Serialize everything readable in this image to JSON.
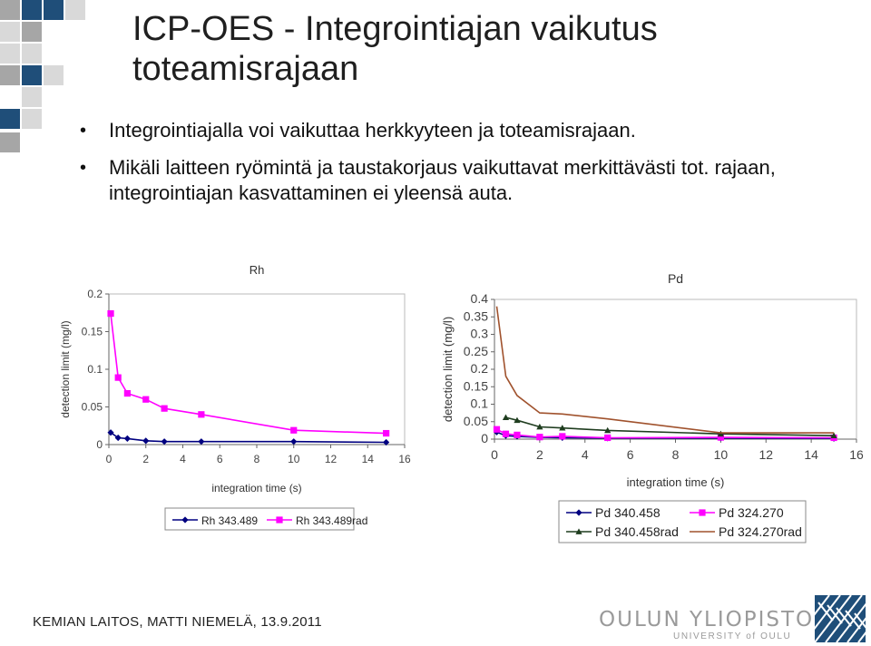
{
  "title": "ICP-OES - Integrointiajan vaikutus toteamisrajaan",
  "bullets": [
    "Integrointiajalla voi vaikuttaa herkkyyteen ja toteamisrajaan.",
    "Mikäli laitteen ryömintä ja taustakorjaus vaikuttavat merkittävästi tot. rajaan, integrointiajan kasvattaminen ei yleensä auta."
  ],
  "footer": "KEMIAN LAITOS, MATTI NIEMELÄ, 13.9.2011",
  "university": {
    "name": "OULUN YLIOPISTO",
    "english": "UNIVERSITY of OULU"
  },
  "colors": {
    "accent_blue": "#1f4e79",
    "deco_gray": "#a6a6a6",
    "deco_light": "#d9d9d9",
    "magenta": "#ff00ff",
    "navy": "#000080",
    "darkgreen": "#1f3d1f",
    "brown": "#a0522d",
    "plot_bg": "#ffffff",
    "legend_border": "#888888"
  },
  "chart_data": [
    {
      "type": "line",
      "title": "Rh",
      "xlabel": "integration time (s)",
      "ylabel": "detection limit (mg/l)",
      "xlim": [
        0,
        16
      ],
      "ylim": [
        0,
        0.2
      ],
      "xticks": [
        "0",
        "2",
        "4",
        "6",
        "8",
        "10",
        "12",
        "14",
        "16"
      ],
      "yticks": [
        "0",
        "0.05",
        "0.1",
        "0.15",
        "0.2"
      ],
      "grid": false,
      "legend": "bottom",
      "series": [
        {
          "name": "Rh 343.489",
          "color": "#000080",
          "marker": "diamond",
          "x": [
            0.1,
            0.5,
            1,
            2,
            3,
            5,
            10,
            15
          ],
          "y": [
            0.016,
            0.009,
            0.008,
            0.005,
            0.004,
            0.004,
            0.004,
            0.003
          ]
        },
        {
          "name": "Rh 343.489rad",
          "color": "#ff00ff",
          "marker": "square",
          "x": [
            0.1,
            0.5,
            1,
            2,
            3,
            5,
            10,
            15
          ],
          "y": [
            0.174,
            0.089,
            0.068,
            0.06,
            0.048,
            0.04,
            0.019,
            0.015
          ]
        }
      ]
    },
    {
      "type": "line",
      "title": "Pd",
      "xlabel": "integration time (s)",
      "ylabel": "detection limit (mg/l)",
      "xlim": [
        0,
        16
      ],
      "ylim": [
        0,
        0.4
      ],
      "xticks": [
        "0",
        "2",
        "4",
        "6",
        "8",
        "10",
        "12",
        "14",
        "16"
      ],
      "yticks": [
        "0",
        "0.05",
        "0.1",
        "0.15",
        "0.2",
        "0.25",
        "0.3",
        "0.35",
        "0.4"
      ],
      "grid": false,
      "legend": "bottom",
      "series": [
        {
          "name": "Pd 340.458",
          "color": "#000080",
          "marker": "diamond",
          "x": [
            0.1,
            0.5,
            1,
            2,
            3,
            5,
            10,
            15
          ],
          "y": [
            0.02,
            0.01,
            0.008,
            0.005,
            0.004,
            0.003,
            0.003,
            0.002
          ]
        },
        {
          "name": "Pd 324.270",
          "color": "#ff00ff",
          "marker": "square",
          "x": [
            0.1,
            0.5,
            1,
            2,
            3,
            5,
            10,
            15
          ],
          "y": [
            0.028,
            0.015,
            0.012,
            0.006,
            0.008,
            0.004,
            0.005,
            0.004
          ]
        },
        {
          "name": "Pd 340.458rad",
          "color": "#1f3d1f",
          "marker": "triangle",
          "x": [
            0.5,
            1,
            2,
            3,
            5,
            10,
            15
          ],
          "y": [
            0.062,
            0.054,
            0.035,
            0.032,
            0.025,
            0.015,
            0.01
          ]
        },
        {
          "name": "Pd 324.270rad",
          "color": "#a0522d",
          "marker": "none",
          "x": [
            0.1,
            0.5,
            1,
            2,
            3,
            5,
            10,
            15
          ],
          "y": [
            0.38,
            0.18,
            0.125,
            0.075,
            0.072,
            0.058,
            0.018,
            0.018
          ]
        }
      ]
    }
  ]
}
